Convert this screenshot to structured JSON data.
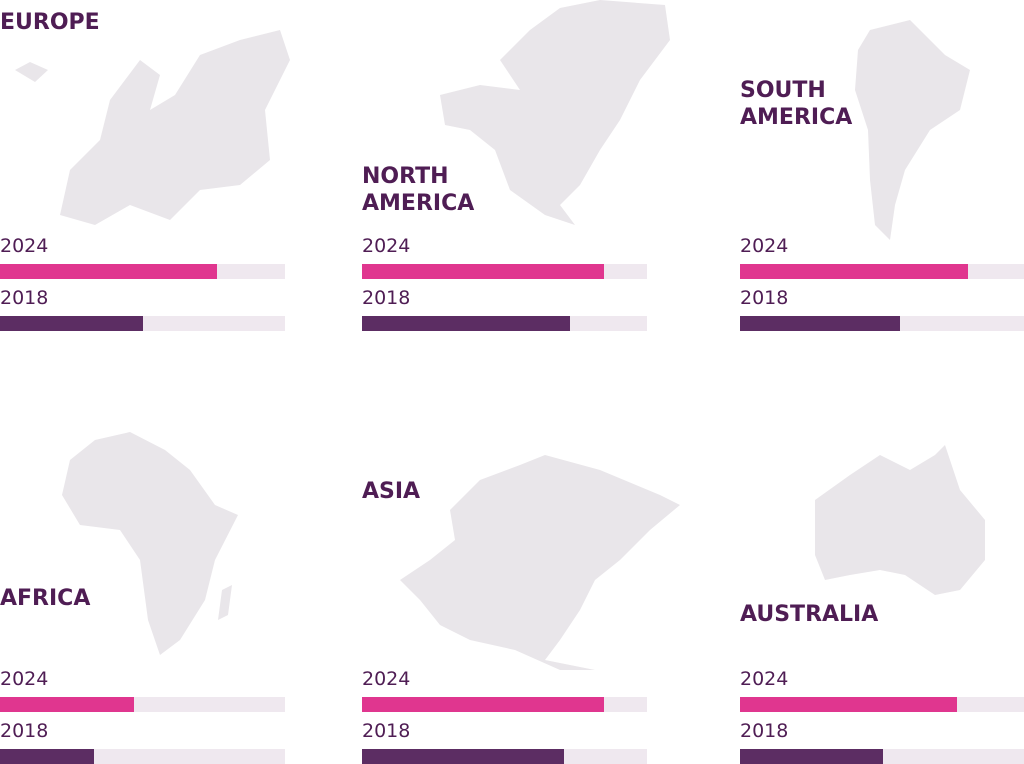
{
  "chart_data": [
    {
      "type": "bar",
      "title": "EUROPE",
      "categories": [
        "2024",
        "2018"
      ],
      "values": [
        76,
        50
      ],
      "colors": [
        "#e0368f",
        "#5c2d63"
      ],
      "xlim": [
        0,
        100
      ]
    },
    {
      "type": "bar",
      "title": "NORTH AMERICA",
      "categories": [
        "2024",
        "2018"
      ],
      "values": [
        85,
        73
      ],
      "colors": [
        "#e0368f",
        "#5c2d63"
      ],
      "xlim": [
        0,
        100
      ]
    },
    {
      "type": "bar",
      "title": "SOUTH AMERICA",
      "categories": [
        "2024",
        "2018"
      ],
      "values": [
        80,
        56
      ],
      "colors": [
        "#e0368f",
        "#5c2d63"
      ],
      "xlim": [
        0,
        100
      ]
    },
    {
      "type": "bar",
      "title": "AFRICA",
      "categories": [
        "2024",
        "2018"
      ],
      "values": [
        47,
        33
      ],
      "colors": [
        "#e0368f",
        "#5c2d63"
      ],
      "xlim": [
        0,
        100
      ]
    },
    {
      "type": "bar",
      "title": "ASIA",
      "categories": [
        "2024",
        "2018"
      ],
      "values": [
        85,
        71
      ],
      "colors": [
        "#e0368f",
        "#5c2d63"
      ],
      "xlim": [
        0,
        100
      ]
    },
    {
      "type": "bar",
      "title": "AUSTRALIA",
      "categories": [
        "2024",
        "2018"
      ],
      "values": [
        76,
        50
      ],
      "colors": [
        "#e0368f",
        "#5c2d63"
      ],
      "xlim": [
        0,
        100
      ]
    }
  ]
}
